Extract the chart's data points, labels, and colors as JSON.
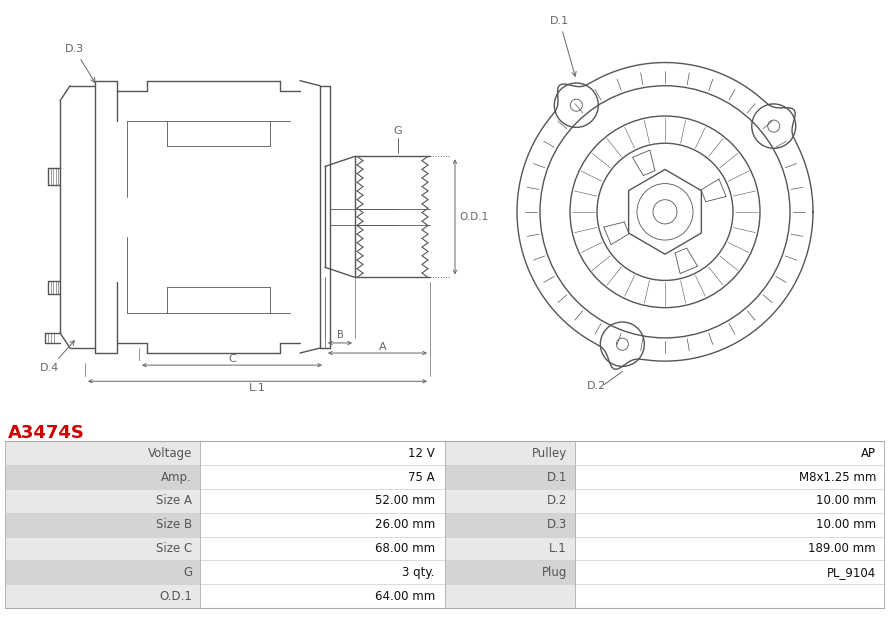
{
  "title": "A3474S",
  "title_color": "#cc0000",
  "bg_color": "#ffffff",
  "table_headers_left": [
    "Voltage",
    "Amp.",
    "Size A",
    "Size B",
    "Size C",
    "G",
    "O.D.1"
  ],
  "table_values_left": [
    "12 V",
    "75 A",
    "52.00 mm",
    "26.00 mm",
    "68.00 mm",
    "3 qty.",
    "64.00 mm"
  ],
  "table_headers_right": [
    "Pulley",
    "D.1",
    "D.2",
    "D.3",
    "L.1",
    "Plug",
    ""
  ],
  "table_values_right": [
    "AP",
    "M8x1.25 mm",
    "10.00 mm",
    "10.00 mm",
    "189.00 mm",
    "PL_9104",
    ""
  ],
  "row_colors": [
    "#e8e8e8",
    "#d4d4d4"
  ],
  "label_color": "#555555",
  "value_color": "#111111",
  "line_color": "#555555",
  "dim_color": "#666666"
}
